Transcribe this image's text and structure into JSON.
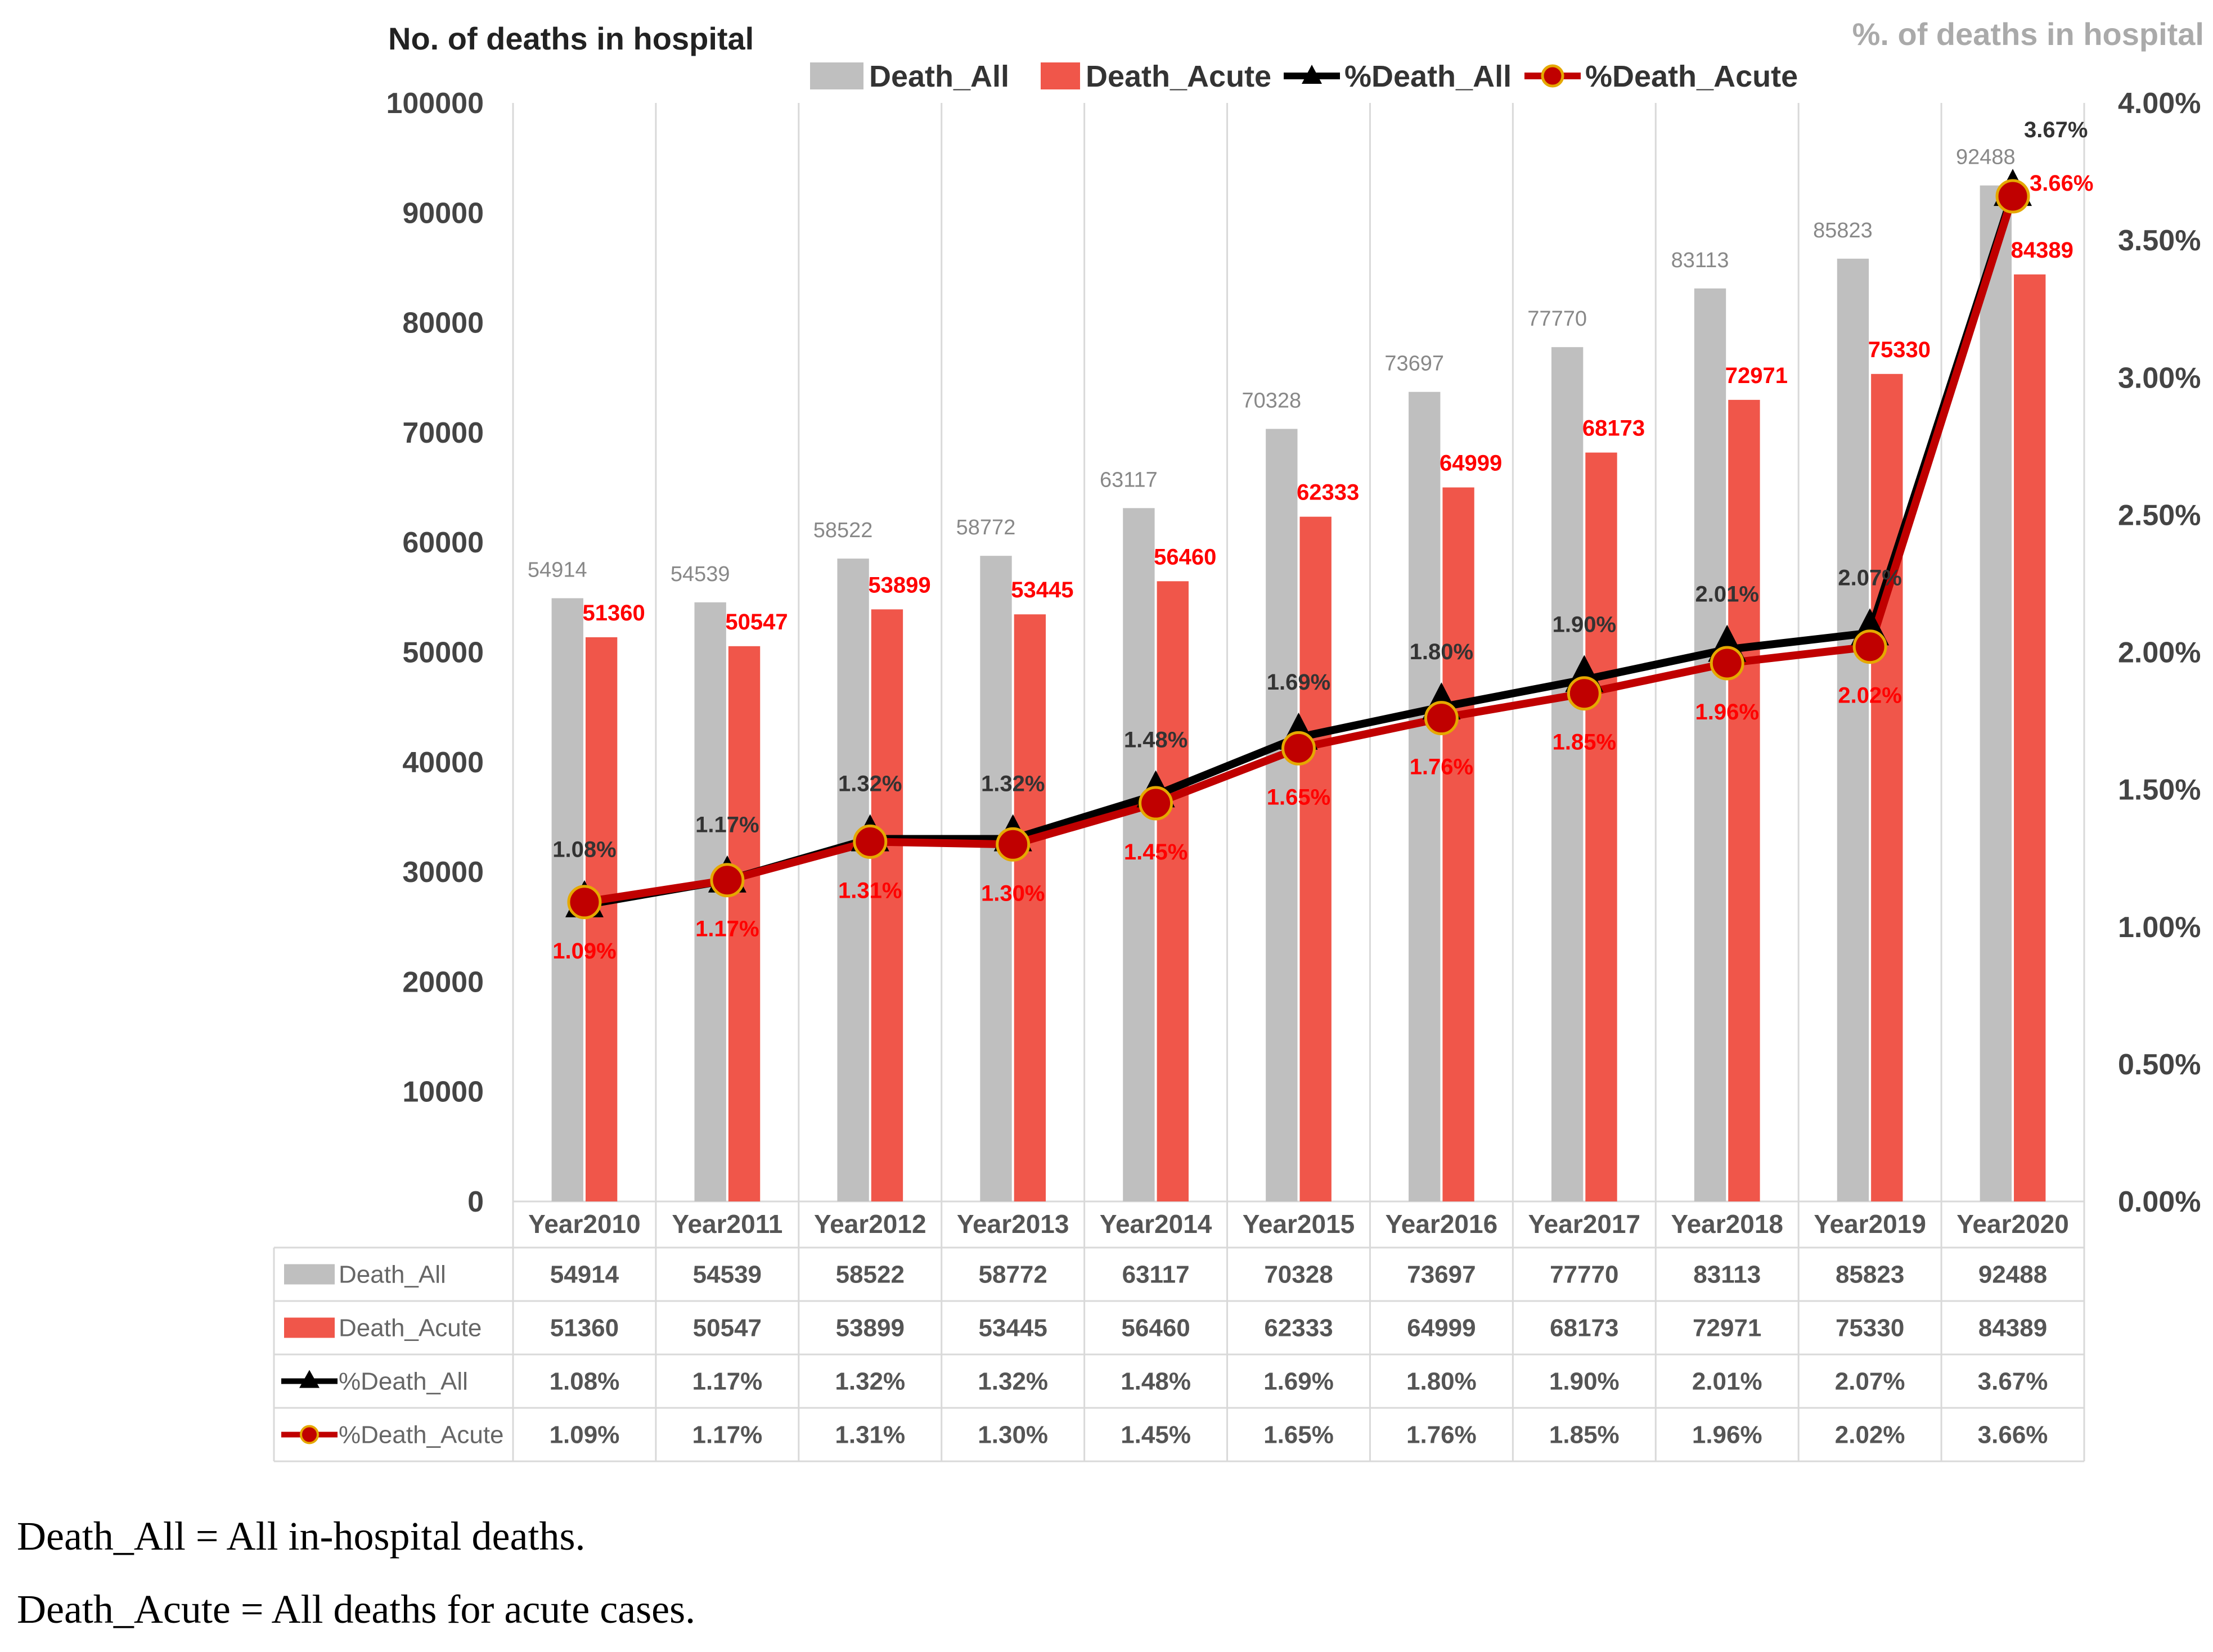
{
  "chart_data": {
    "type": "bar",
    "title_left": "No. of deaths in hospital",
    "title_right": "%. of deaths in hospital",
    "categories": [
      "Year2010",
      "Year2011",
      "Year2012",
      "Year2013",
      "Year2014",
      "Year2015",
      "Year2016",
      "Year2017",
      "Year2018",
      "Year2019",
      "Year2020"
    ],
    "series": [
      {
        "name": "Death_All",
        "kind": "bar",
        "axis": "left",
        "color": "#bfbfbf",
        "values": [
          54914,
          54539,
          58522,
          58772,
          63117,
          70328,
          73697,
          77770,
          83113,
          85823,
          92488
        ],
        "labels": [
          "54914",
          "54539",
          "58522",
          "58772",
          "63117",
          "70328",
          "73697",
          "77770",
          "83113",
          "85823",
          "92488"
        ]
      },
      {
        "name": "Death_Acute",
        "kind": "bar",
        "axis": "left",
        "color": "#f0564a",
        "values": [
          51360,
          50547,
          53899,
          53445,
          56460,
          62333,
          64999,
          68173,
          72971,
          75330,
          84389
        ],
        "labels": [
          "51360",
          "50547",
          "53899",
          "53445",
          "56460",
          "62333",
          "64999",
          "68173",
          "72971",
          "75330",
          "84389"
        ]
      },
      {
        "name": "%Death_All",
        "kind": "line",
        "axis": "right",
        "color": "#000000",
        "values": [
          1.08,
          1.17,
          1.32,
          1.32,
          1.48,
          1.69,
          1.8,
          1.9,
          2.01,
          2.07,
          3.67
        ],
        "labels": [
          "1.08%",
          "1.17%",
          "1.32%",
          "1.32%",
          "1.48%",
          "1.69%",
          "1.80%",
          "1.90%",
          "2.01%",
          "2.07%",
          "3.67%"
        ]
      },
      {
        "name": "%Death_Acute",
        "kind": "line",
        "axis": "right",
        "color": "#c00000",
        "values": [
          1.09,
          1.17,
          1.31,
          1.3,
          1.45,
          1.65,
          1.76,
          1.85,
          1.96,
          2.02,
          3.66
        ],
        "labels": [
          "1.09%",
          "1.17%",
          "1.31%",
          "1.30%",
          "1.45%",
          "1.65%",
          "1.76%",
          "1.85%",
          "1.96%",
          "2.02%",
          "3.66%"
        ]
      }
    ],
    "y_left": {
      "range": [
        0,
        100000
      ],
      "ticks": [
        "0",
        "10000",
        "20000",
        "30000",
        "40000",
        "50000",
        "60000",
        "70000",
        "80000",
        "90000",
        "100000"
      ]
    },
    "y_right": {
      "range": [
        0,
        4
      ],
      "ticks": [
        "0.00%",
        "0.50%",
        "1.00%",
        "1.50%",
        "2.00%",
        "2.50%",
        "3.00%",
        "3.50%",
        "4.00%"
      ]
    },
    "grid": "vertical",
    "legend": "top-center",
    "data_table": true
  },
  "footnotes": [
    "Death_All = All in-hospital deaths.",
    "Death_Acute = All deaths for acute cases."
  ]
}
